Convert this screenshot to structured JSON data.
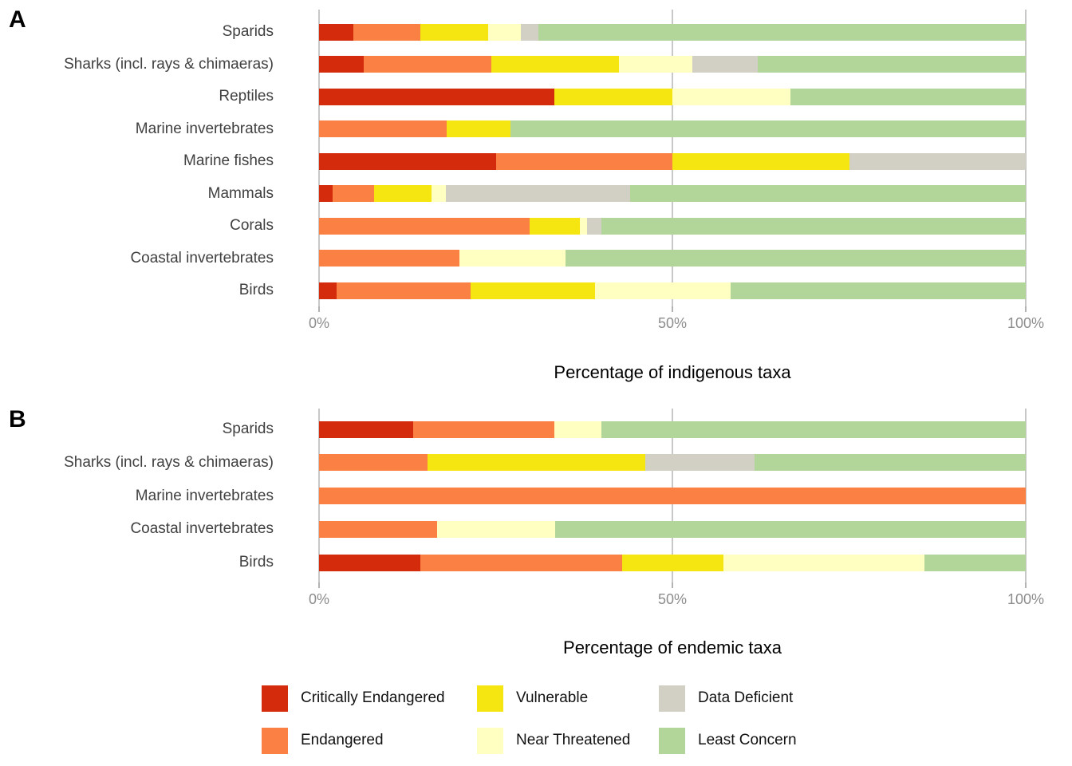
{
  "panels": {
    "a": {
      "letter": "A",
      "xlabel": "Percentage of indigenous taxa",
      "ticks": [
        "0%",
        "50%",
        "100%"
      ]
    },
    "b": {
      "letter": "B",
      "xlabel": "Percentage of endemic taxa",
      "ticks": [
        "0%",
        "50%",
        "100%"
      ]
    }
  },
  "colors": {
    "Critically Endangered": "#d42b0d",
    "Endangered": "#fb8044",
    "Vulnerable": "#f5e511",
    "Near Threatened": "#ffffc2",
    "Data Deficient": "#d2cfc5",
    "Least Concern": "#b2d699"
  },
  "legend": {
    "items": [
      {
        "label": "Critically Endangered",
        "color": "#d42b0d"
      },
      {
        "label": "Endangered",
        "color": "#fb8044"
      },
      {
        "label": "Vulnerable",
        "color": "#f5e511"
      },
      {
        "label": "Near Threatened",
        "color": "#ffffc2"
      },
      {
        "label": "Data Deficient",
        "color": "#d2cfc5"
      },
      {
        "label": "Least Concern",
        "color": "#b2d699"
      }
    ]
  },
  "chart_data": [
    {
      "type": "bar",
      "orientation": "horizontal",
      "stacked": true,
      "panel": "A",
      "title": "",
      "xlabel": "Percentage of indigenous taxa",
      "ylabel": "",
      "xlim": [
        0,
        100
      ],
      "x_ticks": [
        "0%",
        "50%",
        "100%"
      ],
      "grid": "vertical-major-only",
      "categories": [
        "Sparids",
        "Sharks (incl. rays & chimaeras)",
        "Reptiles",
        "Marine invertebrates",
        "Marine fishes",
        "Mammals",
        "Corals",
        "Coastal invertebrates",
        "Birds"
      ],
      "series": [
        {
          "name": "Critically Endangered",
          "values": [
            4.8,
            6.3,
            33.3,
            0,
            25,
            1.9,
            0,
            0,
            2.5
          ]
        },
        {
          "name": "Endangered",
          "values": [
            9.5,
            18.1,
            0,
            18.1,
            25,
            5.9,
            29.8,
            19.9,
            19.0
          ]
        },
        {
          "name": "Vulnerable",
          "values": [
            9.6,
            18.0,
            16.7,
            9.0,
            25,
            8.1,
            7.1,
            0,
            17.5
          ]
        },
        {
          "name": "Near Threatened",
          "values": [
            4.7,
            10.4,
            16.7,
            0,
            0,
            2.0,
            1.0,
            15.0,
            19.2
          ]
        },
        {
          "name": "Data Deficient",
          "values": [
            2.4,
            9.3,
            0,
            0,
            25,
            26.1,
            2.1,
            0,
            0
          ]
        },
        {
          "name": "Least Concern",
          "values": [
            69.0,
            37.9,
            33.3,
            72.9,
            0,
            56.0,
            60.0,
            65.1,
            41.8
          ]
        }
      ]
    },
    {
      "type": "bar",
      "orientation": "horizontal",
      "stacked": true,
      "panel": "B",
      "title": "",
      "xlabel": "Percentage of endemic taxa",
      "ylabel": "",
      "xlim": [
        0,
        100
      ],
      "x_ticks": [
        "0%",
        "50%",
        "100%"
      ],
      "grid": "vertical-major-only",
      "categories": [
        "Sparids",
        "Sharks (incl. rays & chimaeras)",
        "Marine invertebrates",
        "Coastal invertebrates",
        "Birds"
      ],
      "series": [
        {
          "name": "Critically Endangered",
          "values": [
            13.3,
            0,
            0,
            0,
            14.3
          ]
        },
        {
          "name": "Endangered",
          "values": [
            20.0,
            15.4,
            100,
            16.7,
            28.6
          ]
        },
        {
          "name": "Vulnerable",
          "values": [
            0,
            30.8,
            0,
            0,
            14.3
          ]
        },
        {
          "name": "Near Threatened",
          "values": [
            6.7,
            0,
            0,
            16.7,
            28.5
          ]
        },
        {
          "name": "Data Deficient",
          "values": [
            0,
            15.4,
            0,
            0,
            0
          ]
        },
        {
          "name": "Least Concern",
          "values": [
            60.0,
            38.4,
            0,
            66.6,
            14.3
          ]
        }
      ]
    }
  ]
}
